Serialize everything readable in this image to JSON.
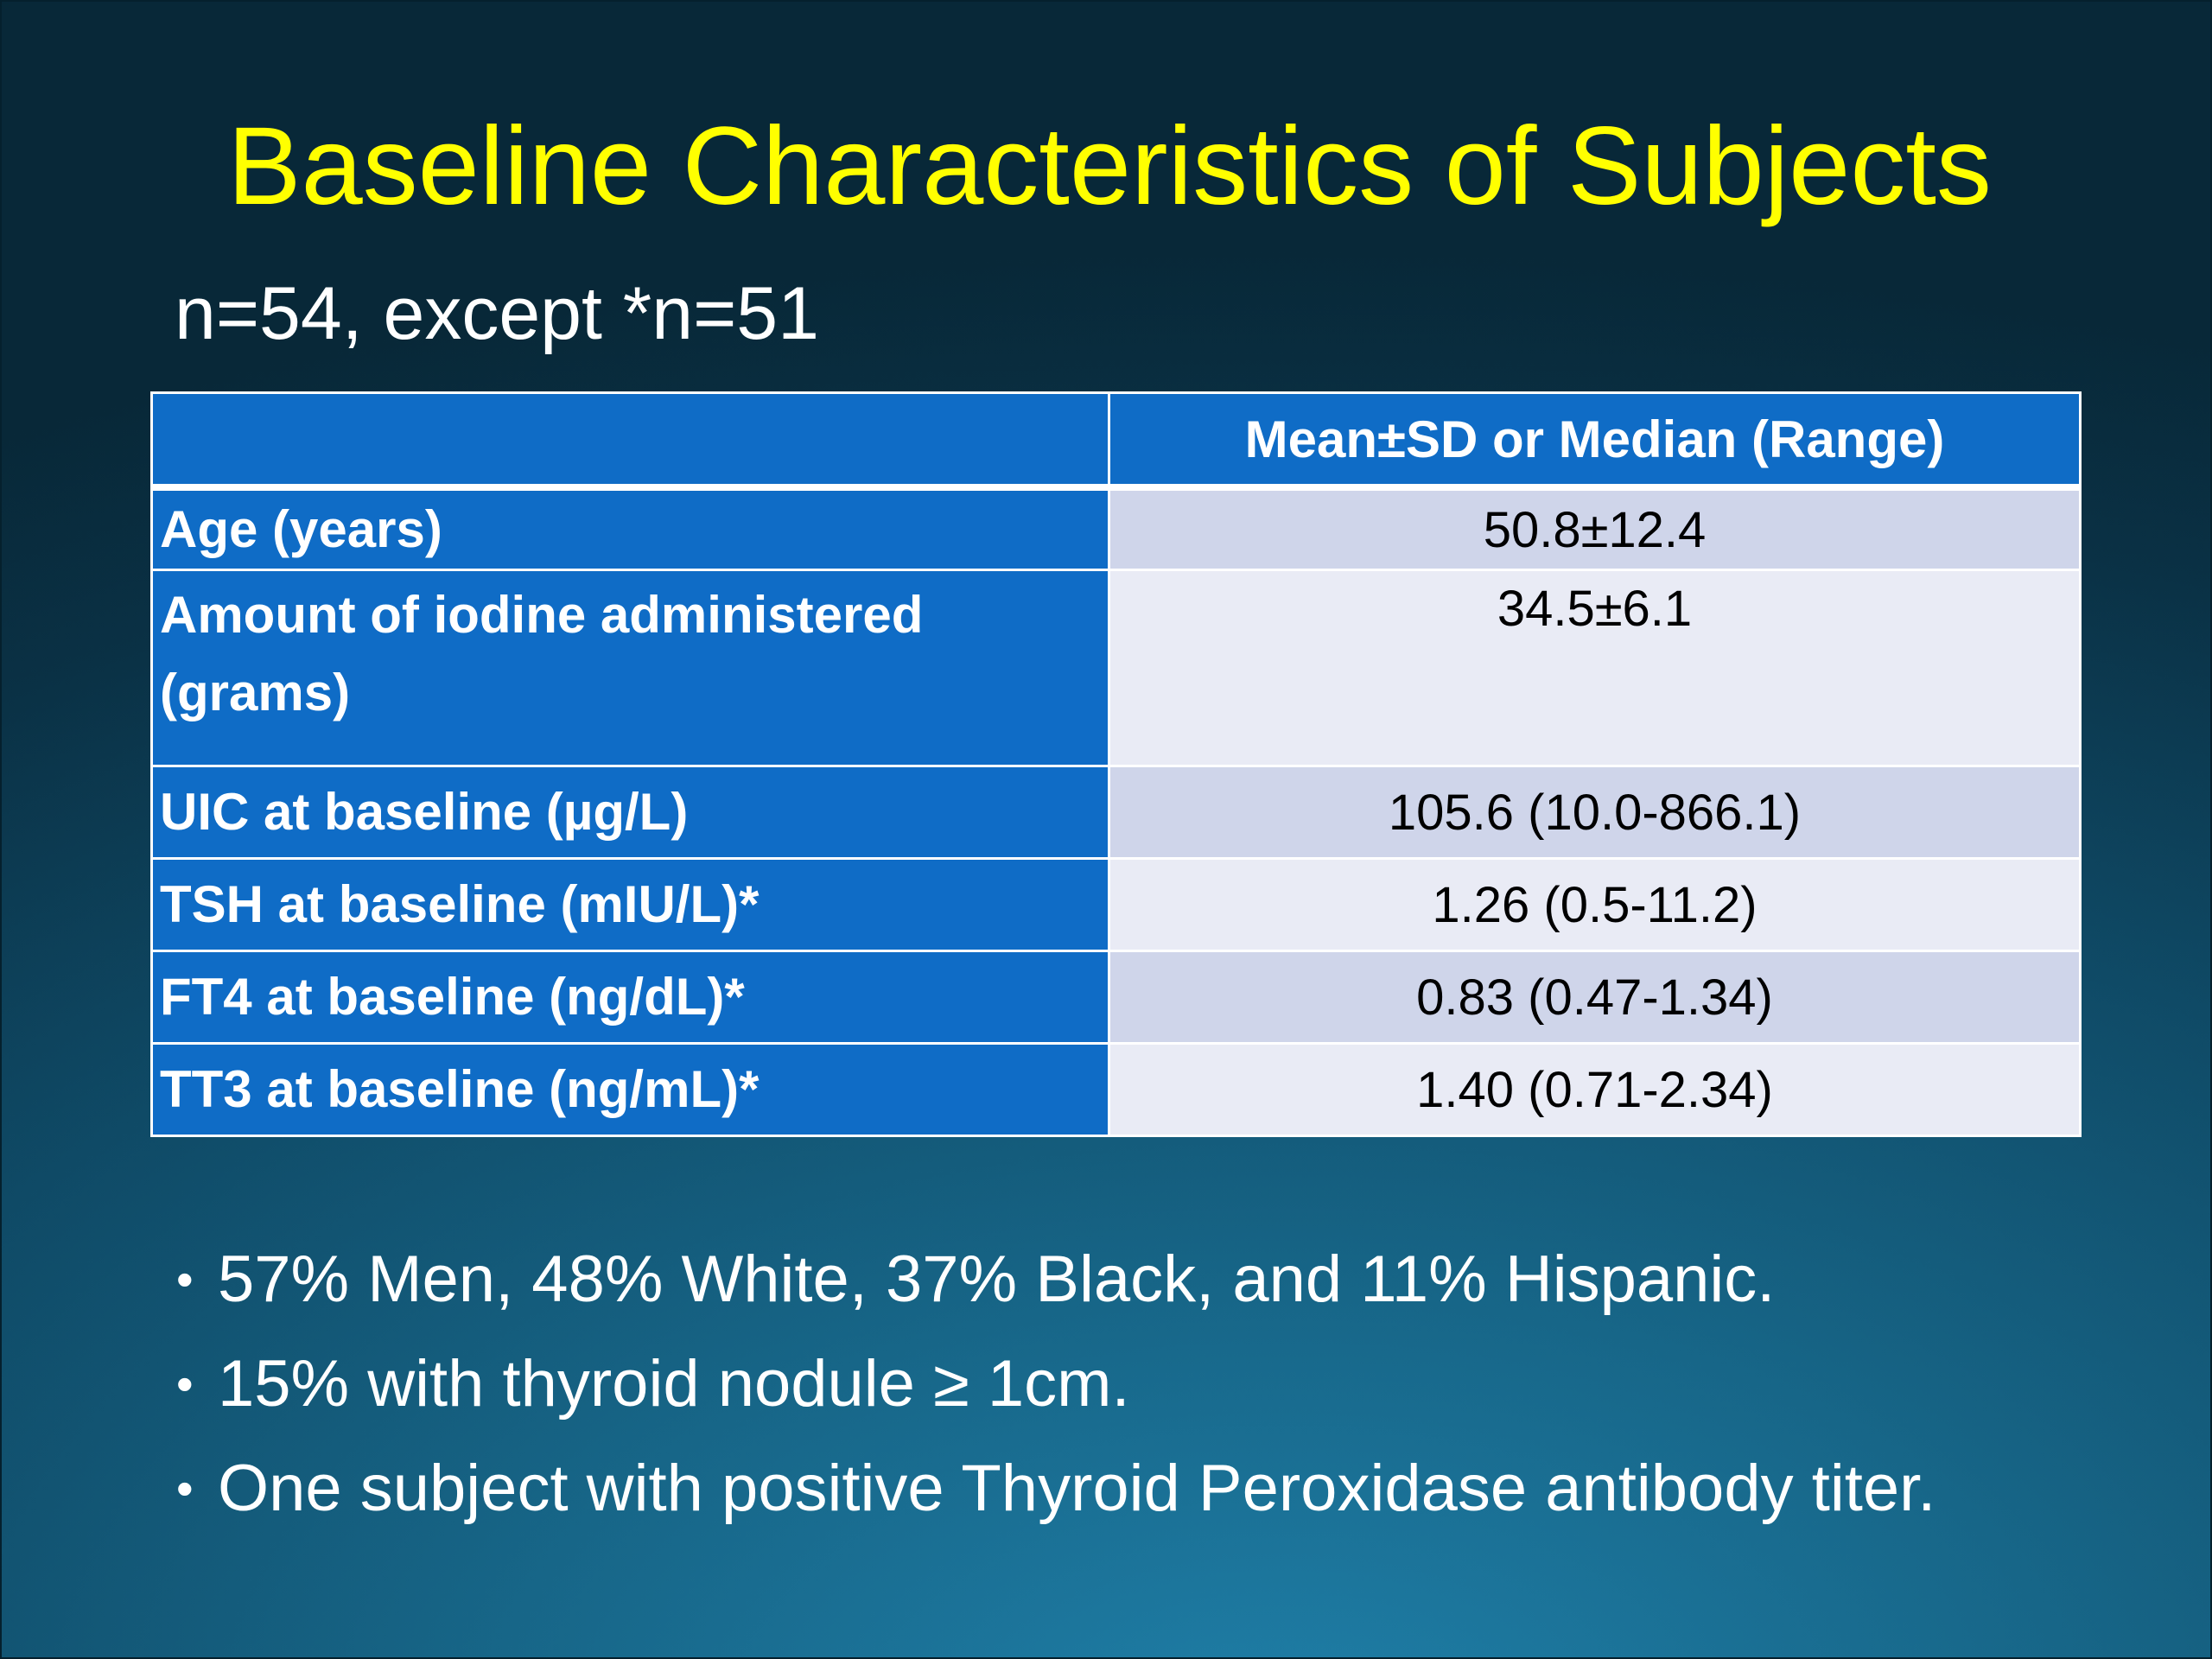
{
  "slide": {
    "title": "Baseline Characteristics of Subjects",
    "subtitle": "n=54, except *n=51"
  },
  "table": {
    "header": {
      "label": "",
      "value": "Mean±SD or Median (Range)"
    },
    "rows": [
      {
        "label": "Age (years)",
        "value": "50.8±12.4"
      },
      {
        "label": "Amount of iodine administered (grams)",
        "value": "34.5±6.1"
      },
      {
        "label": "UIC at baseline (µg/L)",
        "value": "105.6 (10.0-866.1)"
      },
      {
        "label": "TSH at baseline (mIU/L)*",
        "value": "1.26 (0.5-11.2)"
      },
      {
        "label": "FT4 at baseline (ng/dL)*",
        "value": "0.83 (0.47-1.34)"
      },
      {
        "label": "TT3 at baseline (ng/mL)*",
        "value": "1.40 (0.71-2.34)"
      }
    ]
  },
  "bullets": [
    "57% Men, 48% White, 37% Black, and 11% Hispanic.",
    "15% with thyroid nodule ≥ 1cm.",
    "One subject with positive Thyroid Peroxidase antibody titer."
  ],
  "colors": {
    "title": "#ffff00",
    "table_header_bg": "#0f6cc6",
    "row_value_odd_bg": "#cfd5ea",
    "row_value_even_bg": "#e9ebf5",
    "background": "#0f4a66"
  },
  "icons": {
    "bullet": "•"
  }
}
